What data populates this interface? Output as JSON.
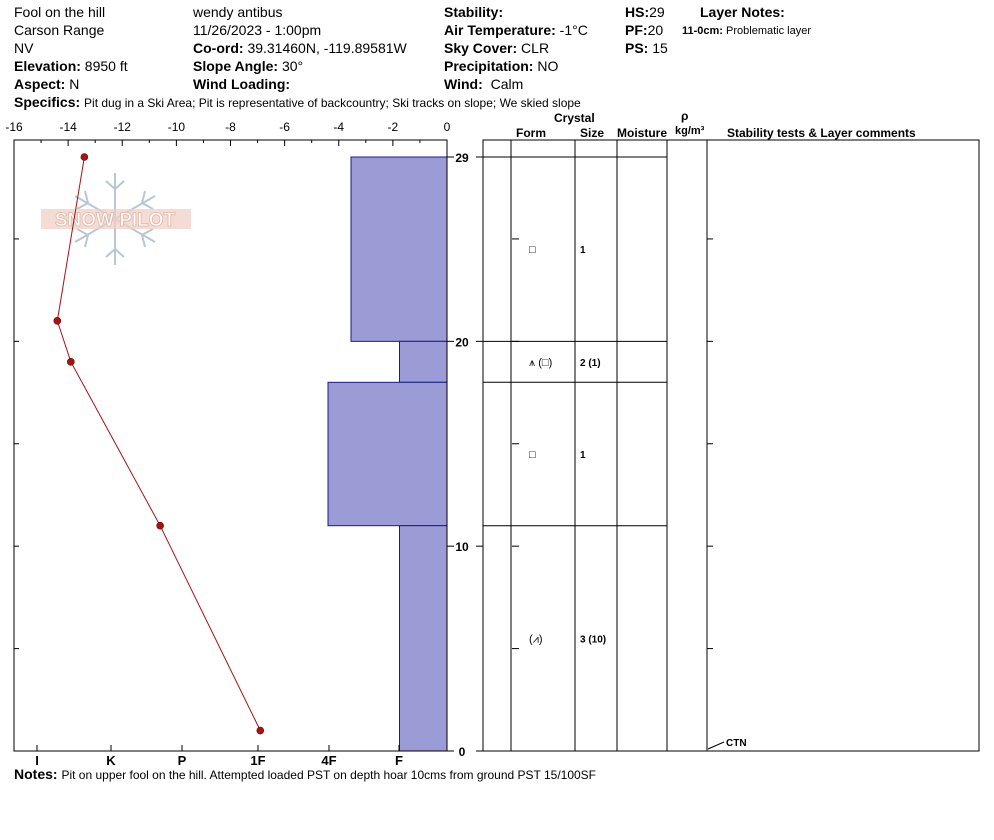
{
  "header": {
    "location": "Fool on the hill",
    "range": "Carson Range",
    "state": "NV",
    "elevation_label": "Elevation:",
    "elevation": "8950 ft",
    "aspect_label": "Aspect:",
    "aspect": "N",
    "observer": "wendy antibus",
    "datetime": "11/26/2023 - 1:00pm",
    "coord_label": "Co-ord:",
    "coord": "39.31460N, -119.89581W",
    "slope_label": "Slope Angle:",
    "slope": "30°",
    "wind_loading_label": "Wind Loading:",
    "stability_label": "Stability:",
    "air_temp_label": "Air Temperature:",
    "air_temp": "-1°C",
    "sky_label": "Sky Cover:",
    "sky": "CLR",
    "precip_label": "Precipitation:",
    "precip": "NO",
    "wind_label": "Wind:",
    "wind": "Calm",
    "hs_label": "HS:",
    "hs": "29",
    "pf_label": "PF:",
    "pf": "20",
    "ps_label": "PS:",
    "ps": "15",
    "layer_notes_label": "Layer Notes:",
    "layer_note_depth": "11-0cm:",
    "layer_note_text": "Problematic layer",
    "specifics_label": "Specifics:",
    "specifics": "Pit dug in a Ski Area; Pit is representative of backcountry; Ski tracks on slope; We skied slope"
  },
  "logo_text": "SNOW PILOT",
  "table_headers": {
    "crystal": "Crystal",
    "form": "Form",
    "size": "Size",
    "moisture": "Moisture",
    "rho": "ρ",
    "density_unit": "kg/m³",
    "stability": "Stability tests & Layer comments"
  },
  "layer_rows": [
    {
      "form": "□",
      "size": "1",
      "mid": 24.5
    },
    {
      "form": "⩚ (□)",
      "size": "2 (1)",
      "mid": 19
    },
    {
      "form": "□",
      "size": "1",
      "mid": 14.5
    },
    {
      "form": "(⩘)",
      "size": "3 (10)",
      "mid": 5.5
    }
  ],
  "stability_test": {
    "label": "CTN",
    "height": 0
  },
  "notes_label": "Notes:",
  "notes": "Pit on upper fool on the hill.  Attempted loaded PST on depth hoar 10cms from ground PST 15/100SF",
  "colors": {
    "hardness_fill": "#9b9bd6",
    "hardness_stroke": "#1a1a8c",
    "temp_line": "#aa1111"
  },
  "chart_data": {
    "type": "snow-profile",
    "temperature_axis": {
      "ticks": [
        -16,
        -14,
        -12,
        -10,
        -8,
        -6,
        -4,
        -2,
        0
      ],
      "range": [
        -16,
        0
      ]
    },
    "hardness_axis": {
      "labels": [
        "I",
        "K",
        "P",
        "1F",
        "4F",
        "F"
      ]
    },
    "height_axis": {
      "ticks": [
        0,
        10,
        20,
        29
      ],
      "range": [
        0,
        29
      ],
      "unit": "cm"
    },
    "temperature_profile": [
      {
        "height": 29,
        "temp": -13.4
      },
      {
        "height": 21,
        "temp": -14.4
      },
      {
        "height": 19,
        "temp": -13.9
      },
      {
        "height": 11,
        "temp": -10.6
      },
      {
        "height": 1,
        "temp": -6.9
      }
    ],
    "layers": [
      {
        "top": 29,
        "bottom": 20,
        "hardness": "4F-"
      },
      {
        "top": 20,
        "bottom": 18,
        "hardness": "F"
      },
      {
        "top": 18,
        "bottom": 11,
        "hardness": "4F+"
      },
      {
        "top": 11,
        "bottom": 0,
        "hardness": "F"
      }
    ],
    "layer_boundaries": [
      29,
      20,
      18,
      11,
      0
    ]
  }
}
